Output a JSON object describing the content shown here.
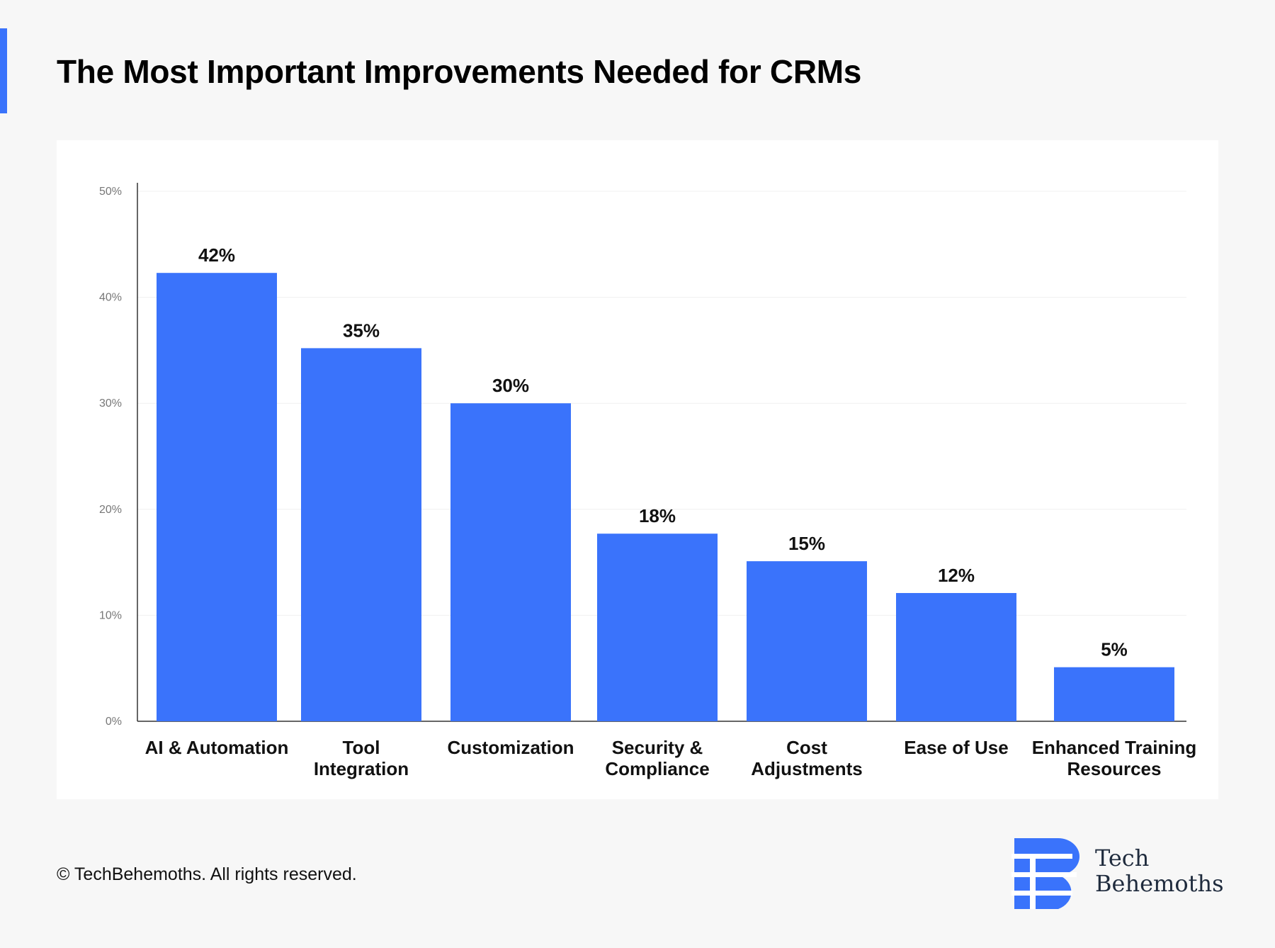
{
  "page": {
    "title": "The Most Important Improvements Needed for CRMs",
    "footer": "© TechBehemoths. All rights reserved.",
    "brand": {
      "line1": "Tech",
      "line2": "Behemoths"
    },
    "accent_color": "#3a73fb"
  },
  "chart_data": {
    "type": "bar",
    "title": "The Most Important Improvements Needed for CRMs",
    "xlabel": "",
    "ylabel": "",
    "ylim": [
      0,
      50
    ],
    "yticks": [
      0,
      10,
      20,
      30,
      40,
      50
    ],
    "ytick_labels": [
      "0%",
      "10%",
      "20%",
      "30%",
      "40%",
      "50%"
    ],
    "grid": true,
    "bar_color": "#3a73fb",
    "categories": [
      [
        "AI & Automation"
      ],
      [
        "Tool",
        "Integration"
      ],
      [
        "Customization"
      ],
      [
        "Security &",
        "Compliance"
      ],
      [
        "Cost",
        "Adjustments"
      ],
      [
        "Ease of Use"
      ],
      [
        "Enhanced Training",
        "Resources"
      ]
    ],
    "values": [
      42.3,
      35.2,
      30,
      17.7,
      15.1,
      12.1,
      5.1
    ],
    "value_labels": [
      "42%",
      "35%",
      "30%",
      "18%",
      "15%",
      "12%",
      "5%"
    ]
  }
}
